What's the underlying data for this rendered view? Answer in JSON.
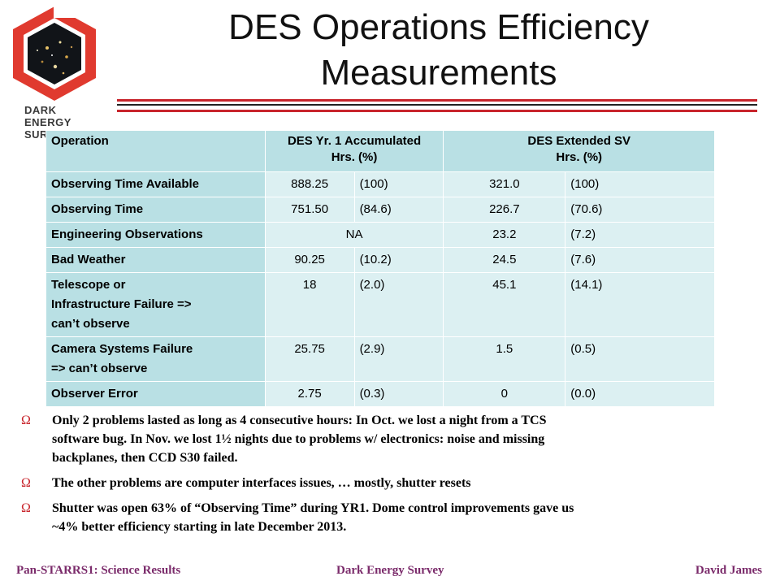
{
  "logo": {
    "line1": "DARK ENERGY",
    "line2": "SURVEY"
  },
  "slide": {
    "title_line1": "DES Operations Efficiency",
    "title_line2": "Measurements"
  },
  "table": {
    "headers": {
      "operation": "Operation",
      "yr1_line1": "DES Yr. 1 Accumulated",
      "yr1_line2": "Hrs. (%)",
      "sv_line1": "DES Extended SV",
      "sv_line2": "Hrs. (%)"
    },
    "rows": [
      {
        "label": "Observing Time Available",
        "yr1_hrs": "888.25",
        "yr1_pct": "(100)",
        "sv_hrs": "321.0",
        "sv_pct": "(100)"
      },
      {
        "label": "Observing Time",
        "yr1_hrs": "751.50",
        "yr1_pct": "(84.6)",
        "sv_hrs": "226.7",
        "sv_pct": "(70.6)"
      },
      {
        "label": "Engineering Observations",
        "yr1_merged": "NA",
        "sv_hrs": "23.2",
        "sv_pct": "(7.2)"
      },
      {
        "label": "Bad Weather",
        "yr1_hrs": "90.25",
        "yr1_pct": "(10.2)",
        "sv_hrs": "24.5",
        "sv_pct": "(7.6)"
      },
      {
        "label_line1": "Telescope or",
        "label_line2": "Infrastructure Failure =>",
        "label_line3": "can’t observe",
        "yr1_hrs": "18",
        "yr1_pct": "(2.0)",
        "sv_hrs": "45.1",
        "sv_pct": "(14.1)"
      },
      {
        "label_line1": "Camera Systems Failure",
        "label_line2": "=> can’t observe",
        "yr1_hrs": "25.75",
        "yr1_pct": "(2.9)",
        "sv_hrs": "1.5",
        "sv_pct": "(0.5)"
      },
      {
        "label": "Observer Error",
        "yr1_hrs": "2.75",
        "yr1_pct": "(0.3)",
        "sv_hrs": "0",
        "sv_pct": "(0.0)"
      }
    ]
  },
  "bullet_symbol": "Ω",
  "bullets": [
    {
      "line1": "Only 2 problems lasted as long as 4 consecutive hours: In Oct. we lost a night from a TCS",
      "line2": "software bug. In Nov. we lost 1½ nights due to  problems w/ electronics: noise and missing",
      "line3": "backplanes, then CCD S30 failed."
    },
    {
      "line1": "The other problems are computer interfaces issues, … mostly, shutter resets"
    },
    {
      "line1": "Shutter was open 63% of “Observing Time” during YR1. Dome control improvements gave us",
      "line2": "~4% better efficiency starting in late December 2013."
    }
  ],
  "footer": {
    "left": "Pan-STARRS1: Science Results",
    "center": "Dark Energy Survey",
    "right": "David James"
  },
  "colors": {
    "accent_red": "#c8252c",
    "header_teal": "#b9e0e4",
    "cell_teal": "#dcf0f2",
    "footer_purple": "#7a2a6a"
  }
}
